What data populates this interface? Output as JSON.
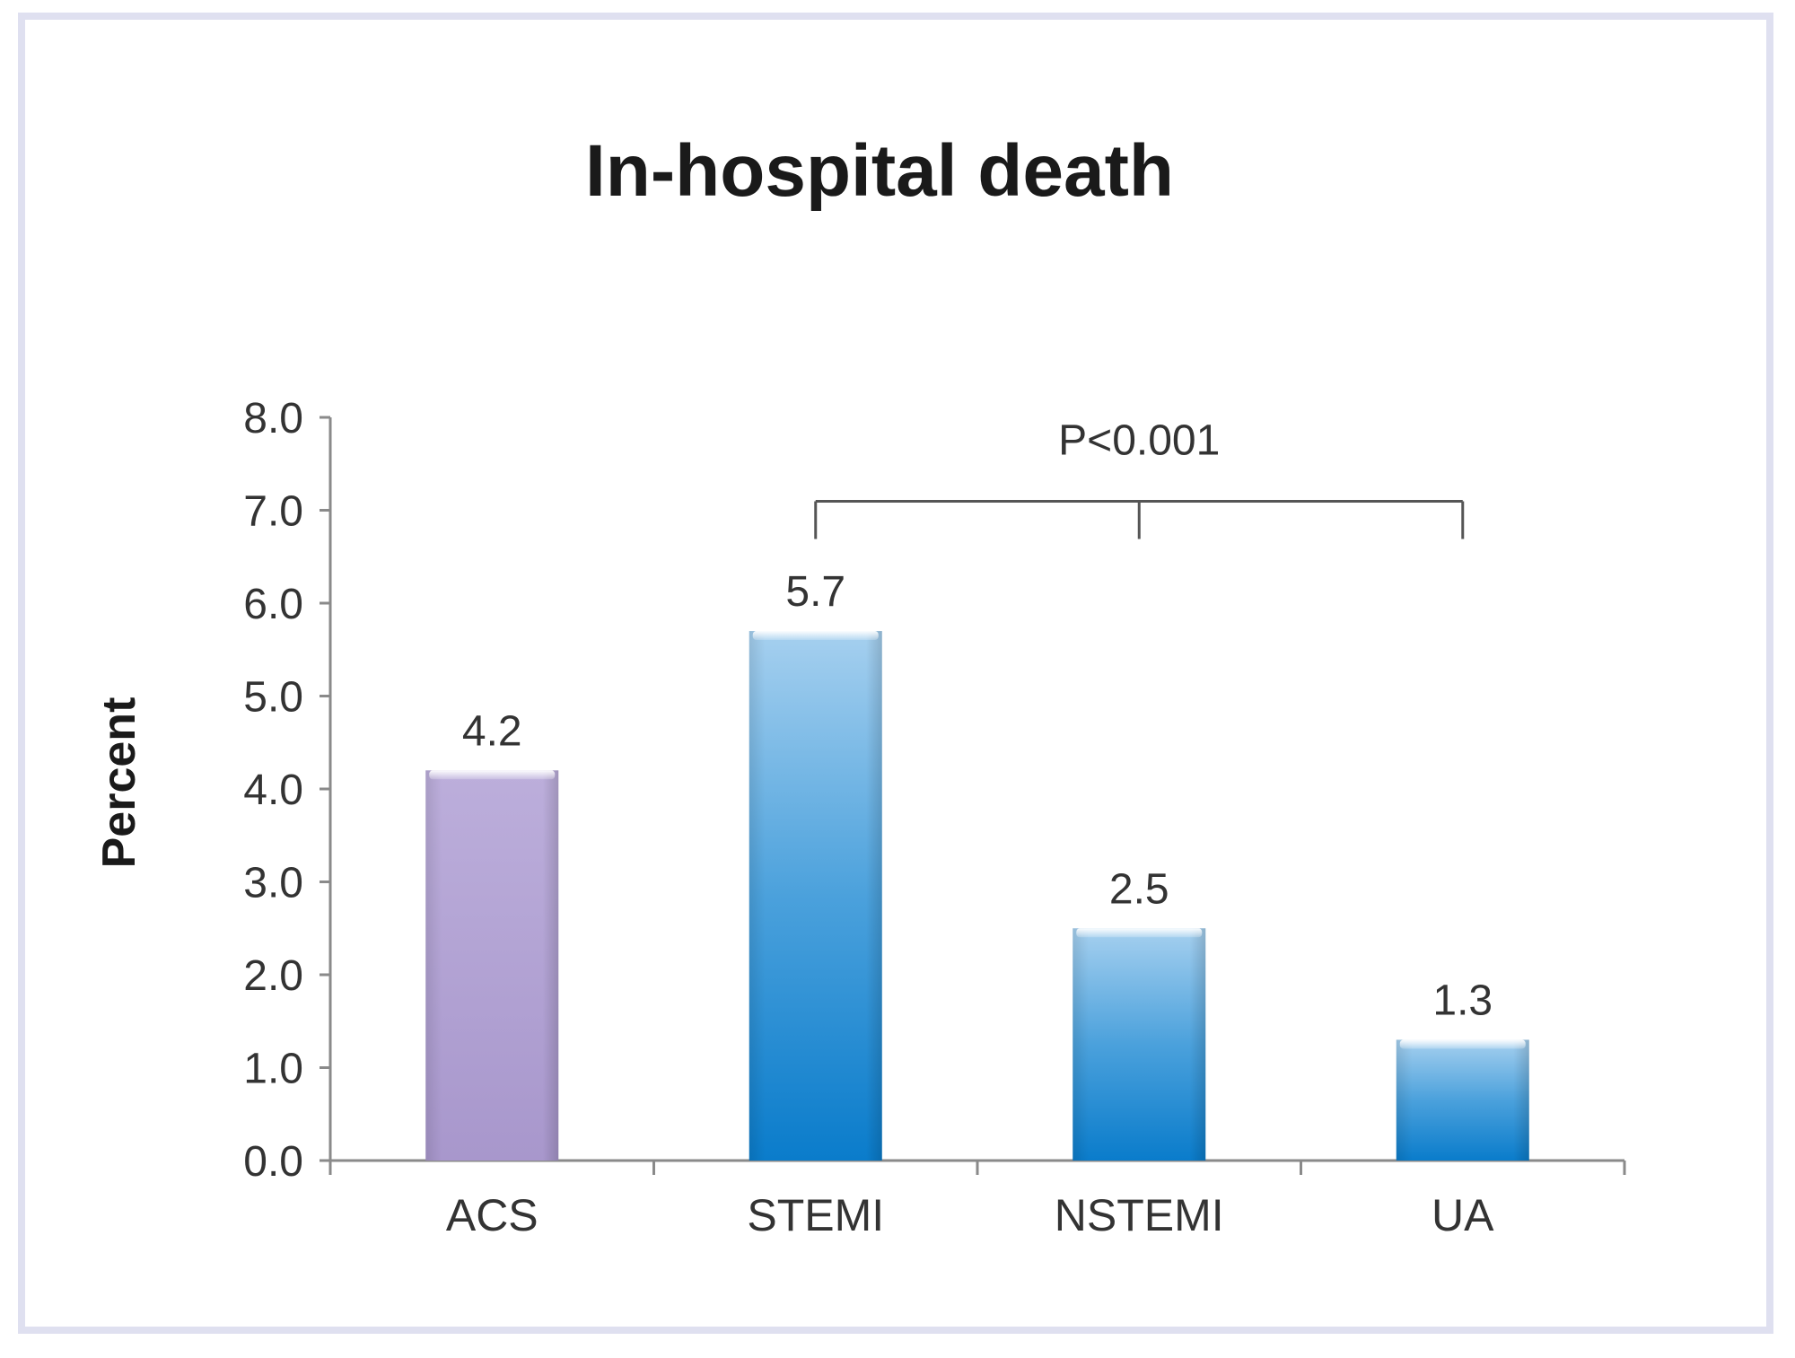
{
  "chart_data": {
    "type": "bar",
    "title": "In-hospital death",
    "xlabel": "",
    "ylabel": "Percent",
    "categories": [
      "ACS",
      "STEMI",
      "NSTEMI",
      "UA"
    ],
    "values": [
      4.2,
      5.7,
      2.5,
      1.3
    ],
    "value_labels": [
      "4.2",
      "5.7",
      "2.5",
      "1.3"
    ],
    "ylim": [
      0,
      8
    ],
    "yticks": [
      "0.0",
      "1.0",
      "2.0",
      "3.0",
      "4.0",
      "5.0",
      "6.0",
      "7.0",
      "8.0"
    ],
    "grid": false,
    "bar_colors": [
      "#b3a4d4",
      "#3a93d4",
      "#3a93d4",
      "#3a93d4"
    ],
    "annotation": {
      "text": "P<0.001",
      "spans": [
        "STEMI",
        "NSTEMI",
        "UA"
      ],
      "bracket_level": 7.0
    }
  }
}
